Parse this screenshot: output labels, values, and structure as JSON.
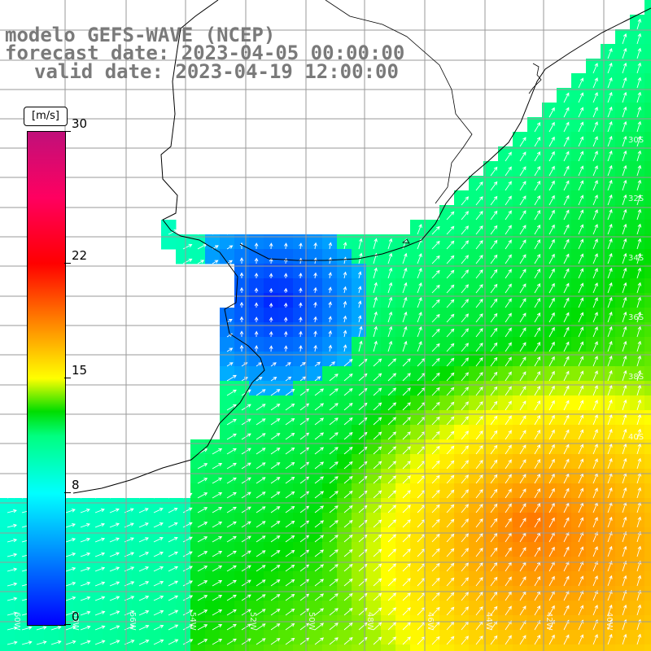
{
  "title": {
    "model": "modelo GEFS-WAVE (NCEP)",
    "forecast": "forecast date: 2023-04-05 00:00:00",
    "valid": "valid date: 2023-04-19 12:00:00"
  },
  "colorbar": {
    "unit": "[m/s]",
    "min": 0,
    "max": 30,
    "ticks": [
      "30",
      "22",
      "15",
      "8",
      "0"
    ],
    "tick_values": [
      30,
      22,
      15,
      8,
      0
    ],
    "stops": [
      {
        "v": 0,
        "c": "#0000ff"
      },
      {
        "v": 4,
        "c": "#0080ff"
      },
      {
        "v": 8,
        "c": "#00ffff"
      },
      {
        "v": 11.5,
        "c": "#00ff80"
      },
      {
        "v": 13,
        "c": "#00dd00"
      },
      {
        "v": 15,
        "c": "#ffff00"
      },
      {
        "v": 18.5,
        "c": "#ff8000"
      },
      {
        "v": 22,
        "c": "#ff0000"
      },
      {
        "v": 26,
        "c": "#ff0060"
      },
      {
        "v": 30,
        "c": "#c0107a"
      }
    ]
  },
  "lat_labels": [
    "30S",
    "32S",
    "34S",
    "36S",
    "38S",
    "40S"
  ],
  "lon_labels": [
    "60W",
    "58W",
    "56W",
    "54W",
    "52W",
    "50W",
    "48W",
    "46W",
    "44W",
    "42W",
    "40W"
  ],
  "colors": {
    "land": "#ffffff",
    "grid": "#9a9a9a",
    "coast": "#000000",
    "arrow": "#ffffff"
  }
}
